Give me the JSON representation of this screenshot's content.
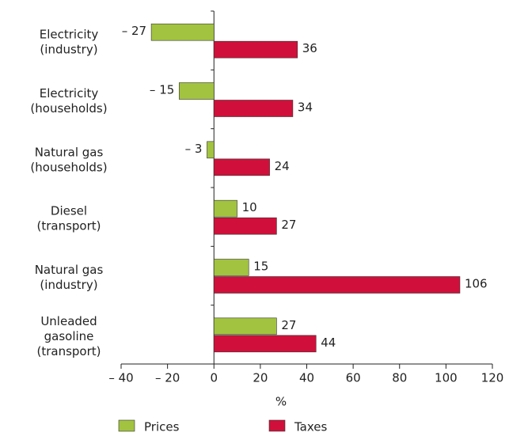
{
  "chart_data": {
    "type": "bar",
    "orientation": "horizontal",
    "categories": [
      "Electricity\n(industry)",
      "Electricity\n(households)",
      "Natural gas\n(households)",
      "Diesel\n(transport)",
      "Natural gas\n(industry)",
      "Unleaded\ngasoline\n(transport)"
    ],
    "series": [
      {
        "name": "Prices",
        "color": "#a2c33f",
        "values": [
          -27,
          -15,
          -3,
          10,
          15,
          27
        ],
        "value_labels": [
          "– 27",
          "– 15",
          "– 3",
          "10",
          "15",
          "27"
        ]
      },
      {
        "name": "Taxes",
        "color": "#d0103a",
        "values": [
          36,
          34,
          24,
          27,
          106,
          44
        ]
      }
    ],
    "xlabel": "%",
    "xlim": [
      -40,
      120
    ],
    "xticks": [
      {
        "value": -40,
        "label": "– 40"
      },
      {
        "value": -20,
        "label": "– 20"
      },
      0,
      20,
      40,
      60,
      80,
      100,
      120
    ],
    "legend": "bottom"
  }
}
